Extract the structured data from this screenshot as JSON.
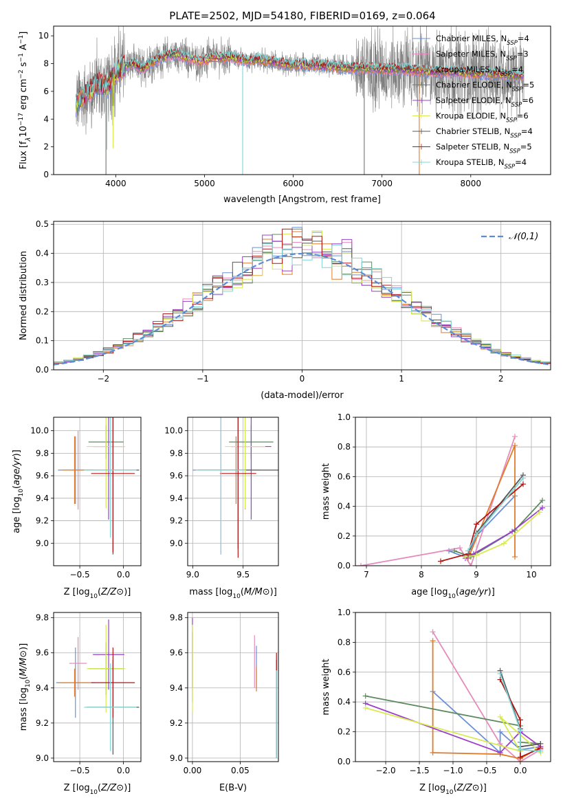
{
  "figure": {
    "title": "PLATE=2502, MJD=54180, FIBERID=0169, z=0.064"
  },
  "colors": {
    "Chabrier MILES": "#6a8fd8",
    "Salpeter MILES": "#e58bbd",
    "Kroupa MILES": "#e07b2a",
    "Chabrier ELODIE": "#5d8a5d",
    "Salpeter ELODIE": "#9b3fc9",
    "Kroupa ELODIE": "#d9ea4f",
    "Chabrier STELIB": "#555555",
    "Salpeter STELIB": "#b01515",
    "Kroupa STELIB": "#7fd6d6",
    "data": "#7f7f7f",
    "normal": "#5b8bd6"
  },
  "legend_spec": [
    {
      "name": "Chabrier MILES",
      "pre": "Chabrier MILES, N",
      "sub": "SSP",
      "post": "=4"
    },
    {
      "name": "Salpeter MILES",
      "pre": "Salpeter MILES, N",
      "sub": "SSP",
      "post": "=3"
    },
    {
      "name": "Kroupa MILES",
      "pre": "Kroupa MILES, N",
      "sub": "SSP",
      "post": "=4"
    },
    {
      "name": "Chabrier ELODIE",
      "pre": "Chabrier ELODIE, N",
      "sub": "SSP",
      "post": "=5"
    },
    {
      "name": "Salpeter ELODIE",
      "pre": "Salpeter ELODIE, N",
      "sub": "SSP",
      "post": "=6"
    },
    {
      "name": "Kroupa ELODIE",
      "pre": "Kroupa ELODIE, N",
      "sub": "SSP",
      "post": "=6"
    },
    {
      "name": "Chabrier STELIB",
      "pre": "Chabrier STELIB, N",
      "sub": "SSP",
      "post": "=4"
    },
    {
      "name": "Salpeter STELIB",
      "pre": "Salpeter STELIB, N",
      "sub": "SSP",
      "post": "=5"
    },
    {
      "name": "Kroupa STELIB",
      "pre": "Kroupa STELIB, N",
      "sub": "SSP",
      "post": "=4"
    }
  ],
  "chart_data": [
    {
      "id": "spectrum",
      "type": "line",
      "xlabel": "wavelength [Angstrom, rest frame]",
      "ylabel_parts": [
        "Flux [f",
        "λ",
        "10",
        "−17",
        " erg cm",
        "−2",
        " s",
        "−1",
        " A",
        "−1",
        "]"
      ],
      "xlim": [
        3300,
        8900
      ],
      "ylim": [
        0,
        10.7
      ],
      "xticks": [
        4000,
        5000,
        6000,
        7000,
        8000
      ],
      "yticks": [
        0,
        2,
        4,
        6,
        8,
        10
      ],
      "continuum": {
        "x": [
          3550,
          3600,
          3700,
          3800,
          3900,
          4000,
          4100,
          4200,
          4300,
          4400,
          4500,
          4600,
          4700,
          4800,
          4900,
          5000,
          5100,
          5200,
          5300,
          5400,
          5500,
          5600,
          5700,
          5800,
          5900,
          6000,
          6200,
          6400,
          6600,
          6800,
          7000,
          7200,
          7400,
          7600,
          7800,
          8000,
          8200,
          8400,
          8600
        ],
        "y": [
          5.0,
          5.4,
          6.0,
          6.6,
          6.3,
          7.3,
          7.8,
          8.0,
          7.6,
          8.1,
          8.4,
          8.6,
          8.7,
          8.4,
          8.2,
          8.2,
          8.5,
          8.4,
          8.5,
          8.3,
          8.2,
          8.3,
          8.2,
          8.1,
          8.0,
          7.9,
          7.9,
          7.8,
          7.7,
          7.7,
          7.6,
          7.6,
          7.5,
          7.4,
          7.4,
          7.3,
          7.3,
          7.2,
          7.1
        ]
      },
      "gap_x": [
        4800,
        5200
      ],
      "lines": [
        {
          "model": "Kroupa STELIB",
          "x": 5430,
          "y": 0
        },
        {
          "model": "Kroupa STELIB",
          "x": 3900,
          "y": 1.8
        },
        {
          "model": "Kroupa MILES",
          "x": 7420,
          "y": 0
        },
        {
          "model": "Kroupa ELODIE",
          "x": 3970,
          "y": 1.9
        }
      ],
      "data_lines": [
        {
          "x": 3890,
          "y": 0
        },
        {
          "x": 6800,
          "y": 0
        }
      ]
    },
    {
      "id": "residuals",
      "type": "step",
      "xlabel": "(data-model)/error",
      "ylabel": "Normed distribution",
      "xlim": [
        -2.5,
        2.5
      ],
      "ylim": [
        0,
        0.51
      ],
      "xticks": [
        -2,
        -1,
        0,
        1,
        2
      ],
      "yticks": [
        0.0,
        0.1,
        0.2,
        0.3,
        0.4,
        0.5
      ],
      "xtick_labels": [
        "−2",
        "−1",
        "0",
        "1",
        "2"
      ],
      "legend": "𝒩(0,1)",
      "bin_width": 0.1
    },
    {
      "id": "age-vs-Z",
      "type": "errorbar",
      "xlabel": "Z [log10(Z/Z⊙)]",
      "ylabel": "age [log10(age/yr)]",
      "xlim": [
        -0.8,
        0.2
      ],
      "ylim": [
        8.8,
        10.12
      ],
      "xticks": [
        -0.5,
        0.0
      ],
      "yticks": [
        9.0,
        9.2,
        9.4,
        9.6,
        9.8,
        10.0
      ],
      "points": [
        {
          "model": "Chabrier MILES",
          "x": -0.55,
          "y": 9.65,
          "xe": 0.2,
          "ye": 0.3
        },
        {
          "model": "Salpeter MILES",
          "x": -0.52,
          "y": 9.65,
          "xe": 0.1,
          "ye": 0.35
        },
        {
          "model": "Kroupa MILES",
          "x": -0.56,
          "y": 9.65,
          "xe": 0.15,
          "ye": 0.3
        },
        {
          "model": "Chabrier ELODIE",
          "x": -0.2,
          "y": 9.9,
          "xe": 0.2,
          "ye": 0.15
        },
        {
          "model": "Salpeter ELODIE",
          "x": -0.17,
          "y": 9.86,
          "xe": 0.18,
          "ye": 0.65
        },
        {
          "model": "Kroupa ELODIE",
          "x": -0.2,
          "y": 9.86,
          "xe": 0.22,
          "ye": 0.55
        },
        {
          "model": "Chabrier STELIB",
          "x": -0.12,
          "y": 9.65,
          "xe": 0.3,
          "ye": 0.75
        },
        {
          "model": "Salpeter STELIB",
          "x": -0.12,
          "y": 9.62,
          "xe": 0.25,
          "ye": 0.7
        },
        {
          "model": "Kroupa STELIB",
          "x": -0.15,
          "y": 9.65,
          "xe": 0.3,
          "ye": 0.6
        }
      ]
    },
    {
      "id": "age-vs-mass",
      "type": "errorbar",
      "xlabel": "mass [log10(M/M⊙)]",
      "ylabel": "",
      "xlim": [
        8.95,
        9.85
      ],
      "ylim": [
        8.8,
        10.12
      ],
      "xticks": [
        9.0,
        9.5
      ],
      "yticks": [
        9.0,
        9.2,
        9.4,
        9.6,
        9.8,
        10.0
      ],
      "points": [
        {
          "model": "Chabrier MILES",
          "x": 9.28,
          "y": 9.65,
          "xe": 0.28,
          "ye": 0.75
        },
        {
          "model": "Salpeter MILES",
          "x": 9.52,
          "y": 9.65,
          "xe": 0.15,
          "ye": 0.35
        },
        {
          "model": "Kroupa MILES",
          "x": 9.43,
          "y": 9.65,
          "xe": 0.15,
          "ye": 0.3
        },
        {
          "model": "Chabrier ELODIE",
          "x": 9.58,
          "y": 9.9,
          "xe": 0.22,
          "ye": 0.15
        },
        {
          "model": "Salpeter ELODIE",
          "x": 9.58,
          "y": 9.86,
          "xe": 0.2,
          "ye": 0.65
        },
        {
          "model": "Kroupa ELODIE",
          "x": 9.52,
          "y": 9.86,
          "xe": 0.2,
          "ye": 0.55
        },
        {
          "model": "Chabrier STELIB",
          "x": 9.45,
          "y": 9.65,
          "xe": 0.4,
          "ye": 0.7
        },
        {
          "model": "Salpeter STELIB",
          "x": 9.45,
          "y": 9.62,
          "xe": 0.18,
          "ye": 0.75
        },
        {
          "model": "Kroupa STELIB",
          "x": 9.28,
          "y": 9.65,
          "xe": 0.25,
          "ye": 0.75
        }
      ]
    },
    {
      "id": "weight-vs-age",
      "type": "line",
      "xlabel": "age [log10(age/yr)]",
      "ylabel": "mass weight",
      "xlim": [
        6.8,
        10.35
      ],
      "ylim": [
        0,
        1.0
      ],
      "xticks": [
        7,
        8,
        9,
        10
      ],
      "yticks": [
        0.0,
        0.2,
        0.4,
        0.6,
        0.8,
        1.0
      ],
      "series": [
        {
          "model": "Chabrier MILES",
          "x": [
            8.5,
            8.85,
            9.0,
            9.7
          ],
          "y": [
            0.1,
            0.05,
            0.2,
            0.47
          ]
        },
        {
          "model": "Salpeter MILES",
          "x": [
            6.9,
            8.7,
            8.9,
            9.7
          ],
          "y": [
            0.0,
            0.12,
            0.0,
            0.87
          ]
        },
        {
          "model": "Kroupa MILES",
          "x": [
            8.85,
            9.7,
            9.7
          ],
          "y": [
            0.05,
            0.81,
            0.06
          ]
        },
        {
          "model": "Chabrier ELODIE",
          "x": [
            8.6,
            8.9,
            9.7,
            10.2
          ],
          "y": [
            0.1,
            0.06,
            0.24,
            0.44
          ]
        },
        {
          "model": "Salpeter ELODIE",
          "x": [
            8.8,
            8.95,
            9.65,
            10.2
          ],
          "y": [
            0.05,
            0.08,
            0.23,
            0.39
          ]
        },
        {
          "model": "Kroupa ELODIE",
          "x": [
            8.8,
            9.0,
            9.5,
            10.15
          ],
          "y": [
            0.06,
            0.07,
            0.15,
            0.36
          ]
        },
        {
          "model": "Chabrier STELIB",
          "x": [
            8.85,
            9.0,
            9.85
          ],
          "y": [
            0.08,
            0.22,
            0.61
          ]
        },
        {
          "model": "Salpeter STELIB",
          "x": [
            8.35,
            8.85,
            9.0,
            9.85
          ],
          "y": [
            0.03,
            0.08,
            0.28,
            0.55
          ]
        },
        {
          "model": "Kroupa STELIB",
          "x": [
            8.85,
            9.0,
            9.85
          ],
          "y": [
            0.1,
            0.21,
            0.59
          ]
        }
      ]
    },
    {
      "id": "mass-vs-Z",
      "type": "errorbar",
      "xlabel": "Z [log10(Z/Z⊙)]",
      "ylabel": "mass [log10(M/M⊙)]",
      "xlim": [
        -0.8,
        0.2
      ],
      "ylim": [
        8.98,
        9.83
      ],
      "xticks": [
        -0.5,
        0.0
      ],
      "yticks": [
        9.0,
        9.2,
        9.4,
        9.6,
        9.8
      ],
      "points": [
        {
          "model": "Chabrier MILES",
          "x": -0.55,
          "y": 9.43,
          "xe": 0.22,
          "ye": 0.2
        },
        {
          "model": "Salpeter MILES",
          "x": -0.52,
          "y": 9.54,
          "xe": 0.1,
          "ye": 0.15
        },
        {
          "model": "Kroupa MILES",
          "x": -0.56,
          "y": 9.43,
          "xe": 0.18,
          "ye": 0.08
        },
        {
          "model": "Chabrier ELODIE",
          "x": -0.2,
          "y": 9.51,
          "xe": 0.2,
          "ye": 0.15
        },
        {
          "model": "Salpeter ELODIE",
          "x": -0.17,
          "y": 9.59,
          "xe": 0.18,
          "ye": 0.2
        },
        {
          "model": "Kroupa ELODIE",
          "x": -0.2,
          "y": 9.51,
          "xe": 0.22,
          "ye": 0.25
        },
        {
          "model": "Chabrier STELIB",
          "x": -0.12,
          "y": 9.29,
          "xe": 0.3,
          "ye": 0.27
        },
        {
          "model": "Salpeter STELIB",
          "x": -0.12,
          "y": 9.43,
          "xe": 0.25,
          "ye": 0.2
        },
        {
          "model": "Kroupa STELIB",
          "x": -0.15,
          "y": 9.29,
          "xe": 0.3,
          "ye": 0.25
        }
      ]
    },
    {
      "id": "mass-vs-EBV",
      "type": "errorbar",
      "xlabel": "E(B-V)",
      "ylabel": "",
      "xlim": [
        -0.005,
        0.09
      ],
      "ylim": [
        8.98,
        9.83
      ],
      "xticks": [
        0.0,
        0.05
      ],
      "yticks": [
        9.0,
        9.2,
        9.4,
        9.6,
        9.8
      ],
      "points": [
        {
          "model": "Chabrier MILES",
          "x": 0.067,
          "y": 9.52,
          "xe": 0,
          "ye": 0.12
        },
        {
          "model": "Salpeter MILES",
          "x": 0.065,
          "y": 9.55,
          "xe": 0,
          "ye": 0.15
        },
        {
          "model": "Kroupa MILES",
          "x": 0.067,
          "y": 9.45,
          "xe": 0,
          "ye": 0.07
        },
        {
          "model": "Chabrier ELODIE",
          "x": 0.0,
          "y": 9.52,
          "xe": 0,
          "ye": 0.2
        },
        {
          "model": "Salpeter ELODIE",
          "x": 0.0,
          "y": 9.6,
          "xe": 0,
          "ye": 0.2
        },
        {
          "model": "Kroupa ELODIE",
          "x": 0.0,
          "y": 9.51,
          "xe": 0,
          "ye": 0.25
        },
        {
          "model": "Chabrier STELIB",
          "x": 0.088,
          "y": 9.29,
          "xe": 0,
          "ye": 0.27
        },
        {
          "model": "Salpeter STELIB",
          "x": 0.088,
          "y": 9.3,
          "xe": 0,
          "ye": 0.3
        },
        {
          "model": "Kroupa STELIB",
          "x": 0.088,
          "y": 9.25,
          "xe": 0,
          "ye": 0.25
        }
      ]
    },
    {
      "id": "weight-vs-Z",
      "type": "line",
      "xlabel": "Z [log10(Z/Z⊙)]",
      "ylabel": "mass weight",
      "xlim": [
        -2.45,
        0.45
      ],
      "ylim": [
        0,
        1.0
      ],
      "xticks": [
        -2.0,
        -1.5,
        -1.0,
        -0.5,
        0.0
      ],
      "yticks": [
        0.0,
        0.2,
        0.4,
        0.6,
        0.8,
        1.0
      ],
      "xtick_labels": [
        "−2.0",
        "−1.5",
        "−1.0",
        "−0.5",
        "0.0"
      ],
      "series": [
        {
          "model": "Chabrier MILES",
          "x": [
            -1.3,
            -0.3,
            -0.3,
            0.0,
            0.3
          ],
          "y": [
            0.47,
            0.06,
            0.2,
            0.08,
            0.1
          ]
        },
        {
          "model": "Salpeter MILES",
          "x": [
            -1.3,
            -0.3,
            0.0,
            0.3
          ],
          "y": [
            0.87,
            0.12,
            0.0,
            0.08
          ]
        },
        {
          "model": "Kroupa MILES",
          "x": [
            -1.3,
            -1.3,
            -0.3,
            0.0,
            0.3
          ],
          "y": [
            0.81,
            0.06,
            0.05,
            0.02,
            0.1
          ]
        },
        {
          "model": "Chabrier ELODIE",
          "x": [
            -2.3,
            0.0,
            0.0,
            0.3
          ],
          "y": [
            0.44,
            0.24,
            0.13,
            0.12
          ]
        },
        {
          "model": "Salpeter ELODIE",
          "x": [
            -2.3,
            -0.3,
            0.0,
            0.3
          ],
          "y": [
            0.39,
            0.06,
            0.2,
            0.1
          ]
        },
        {
          "model": "Kroupa ELODIE",
          "x": [
            -2.3,
            0.0,
            -0.3,
            0.3
          ],
          "y": [
            0.36,
            0.07,
            0.3,
            0.06
          ]
        },
        {
          "model": "Chabrier STELIB",
          "x": [
            -0.3,
            0.0,
            0.0,
            0.3
          ],
          "y": [
            0.61,
            0.22,
            0.1,
            0.12
          ]
        },
        {
          "model": "Salpeter STELIB",
          "x": [
            -0.3,
            0.0,
            0.0,
            0.3
          ],
          "y": [
            0.55,
            0.28,
            0.03,
            0.09
          ]
        },
        {
          "model": "Kroupa STELIB",
          "x": [
            -0.3,
            0.0,
            0.0,
            0.3
          ],
          "y": [
            0.59,
            0.21,
            0.08,
            0.07
          ]
        }
      ]
    }
  ]
}
